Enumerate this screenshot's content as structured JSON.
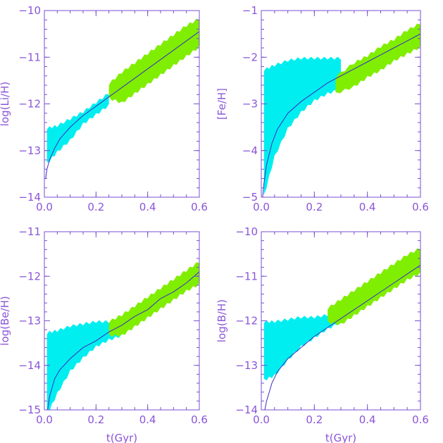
{
  "chart_data": [
    {
      "type": "area",
      "xlabel": "",
      "ylabel": "log(Li/H)",
      "xlim": [
        0.0,
        0.6
      ],
      "ylim": [
        -14,
        -10
      ],
      "xticks": [
        0.0,
        0.2,
        0.4,
        0.6
      ],
      "yticks": [
        -14,
        -13,
        -12,
        -11,
        -10
      ],
      "xtick_labels": [
        "0.0",
        "0.2",
        "0.4",
        "0.6"
      ],
      "ytick_labels": [
        "−14",
        "−13",
        "−12",
        "−11",
        "−10"
      ],
      "line": {
        "x": [
          0.005,
          0.01,
          0.02,
          0.04,
          0.06,
          0.1,
          0.15,
          0.2,
          0.25,
          0.3,
          0.35,
          0.4,
          0.45,
          0.5,
          0.55,
          0.6
        ],
        "y": [
          -13.6,
          -13.4,
          -13.2,
          -12.95,
          -12.75,
          -12.5,
          -12.25,
          -12.05,
          -11.85,
          -11.65,
          -11.45,
          -11.25,
          -11.05,
          -10.85,
          -10.65,
          -10.45
        ]
      },
      "cyan_band": {
        "x": [
          0.01,
          0.05,
          0.1,
          0.15,
          0.2,
          0.25
        ],
        "upper": [
          -12.55,
          -12.5,
          -12.35,
          -12.2,
          -12.0,
          -11.8
        ],
        "lower": [
          -13.25,
          -13.0,
          -12.75,
          -12.4,
          -12.2,
          -12.0
        ]
      },
      "green_band": {
        "x": [
          0.25,
          0.3,
          0.35,
          0.4,
          0.45,
          0.5,
          0.55,
          0.6
        ],
        "upper": [
          -11.6,
          -11.35,
          -11.15,
          -10.95,
          -10.75,
          -10.55,
          -10.35,
          -10.2
        ],
        "lower": [
          -11.85,
          -11.95,
          -11.75,
          -11.55,
          -11.35,
          -11.15,
          -10.95,
          -10.75
        ]
      },
      "colors": {
        "line": "#3a2fc0",
        "cyan": "#00eef0",
        "green": "#80ee00"
      }
    },
    {
      "type": "area",
      "xlabel": "",
      "ylabel": "[Fe/H]",
      "xlim": [
        0.0,
        0.6
      ],
      "ylim": [
        -5,
        -1
      ],
      "xticks": [
        0.0,
        0.2,
        0.4,
        0.6
      ],
      "yticks": [
        -5,
        -4,
        -3,
        -2,
        -1
      ],
      "xtick_labels": [
        "0.0",
        "0.2",
        "0.4",
        "0.6"
      ],
      "ytick_labels": [
        "−5",
        "−4",
        "−3",
        "−2",
        "−1"
      ],
      "line": {
        "x": [
          0.005,
          0.01,
          0.02,
          0.04,
          0.06,
          0.1,
          0.15,
          0.2,
          0.25,
          0.3,
          0.35,
          0.4,
          0.45,
          0.5,
          0.55,
          0.6
        ],
        "y": [
          -5.0,
          -4.7,
          -4.3,
          -3.85,
          -3.55,
          -3.2,
          -2.95,
          -2.75,
          -2.55,
          -2.4,
          -2.25,
          -2.1,
          -1.95,
          -1.8,
          -1.65,
          -1.5
        ]
      },
      "cyan_band": {
        "x": [
          0.01,
          0.05,
          0.1,
          0.15,
          0.2,
          0.25,
          0.3
        ],
        "upper": [
          -2.3,
          -2.2,
          -2.1,
          -2.05,
          -2.05,
          -2.05,
          -2.05
        ],
        "lower": [
          -4.95,
          -4.1,
          -3.5,
          -3.15,
          -2.9,
          -2.75,
          -2.65
        ]
      },
      "green_band": {
        "x": [
          0.28,
          0.35,
          0.4,
          0.45,
          0.5,
          0.55,
          0.6
        ],
        "upper": [
          -2.45,
          -2.15,
          -2.0,
          -1.8,
          -1.65,
          -1.45,
          -1.3
        ],
        "lower": [
          -2.75,
          -2.6,
          -2.4,
          -2.25,
          -2.05,
          -1.9,
          -1.75
        ]
      },
      "colors": {
        "line": "#3a2fc0",
        "cyan": "#00eef0",
        "green": "#80ee00"
      }
    },
    {
      "type": "area",
      "xlabel": "t(Gyr)",
      "ylabel": "log(Be/H)",
      "xlim": [
        0.0,
        0.6
      ],
      "ylim": [
        -15,
        -11
      ],
      "xticks": [
        0.0,
        0.2,
        0.4,
        0.6
      ],
      "yticks": [
        -15,
        -14,
        -13,
        -12,
        -11
      ],
      "xtick_labels": [
        "0.0",
        "0.2",
        "0.4",
        "0.6"
      ],
      "ytick_labels": [
        "−15",
        "−14",
        "−13",
        "−12",
        "−11"
      ],
      "line": {
        "x": [
          0.01,
          0.02,
          0.04,
          0.06,
          0.1,
          0.15,
          0.2,
          0.25,
          0.3,
          0.35,
          0.4,
          0.45,
          0.5,
          0.55,
          0.6
        ],
        "y": [
          -15.1,
          -14.7,
          -14.3,
          -14.1,
          -13.85,
          -13.6,
          -13.45,
          -13.25,
          -13.1,
          -12.9,
          -12.75,
          -12.5,
          -12.35,
          -12.15,
          -11.9
        ]
      },
      "cyan_band": {
        "x": [
          0.01,
          0.05,
          0.1,
          0.15,
          0.2,
          0.25,
          0.3
        ],
        "upper": [
          -13.3,
          -13.25,
          -13.15,
          -13.1,
          -13.05,
          -13.05,
          -13.0
        ],
        "lower": [
          -15.1,
          -14.6,
          -14.1,
          -13.8,
          -13.55,
          -13.4,
          -13.3
        ]
      },
      "green_band": {
        "x": [
          0.25,
          0.3,
          0.35,
          0.4,
          0.45,
          0.5,
          0.55,
          0.6
        ],
        "upper": [
          -13.05,
          -12.9,
          -12.7,
          -12.5,
          -12.3,
          -12.1,
          -11.9,
          -11.7
        ],
        "lower": [
          -13.3,
          -13.3,
          -13.1,
          -12.9,
          -12.7,
          -12.5,
          -12.3,
          -12.15
        ]
      },
      "colors": {
        "line": "#3a2fc0",
        "cyan": "#00eef0",
        "green": "#80ee00"
      }
    },
    {
      "type": "area",
      "xlabel": "t(Gyr)",
      "ylabel": "log(B/H)",
      "xlim": [
        0.0,
        0.6
      ],
      "ylim": [
        -14,
        -10
      ],
      "xticks": [
        0.0,
        0.2,
        0.4,
        0.6
      ],
      "yticks": [
        -14,
        -13,
        -12,
        -11,
        -10
      ],
      "xtick_labels": [
        "0.0",
        "0.2",
        "0.4",
        "0.6"
      ],
      "ytick_labels": [
        "−14",
        "−13",
        "−12",
        "−11",
        "−10"
      ],
      "line": {
        "x": [
          0.01,
          0.02,
          0.04,
          0.06,
          0.1,
          0.15,
          0.2,
          0.25,
          0.3,
          0.35,
          0.4,
          0.45,
          0.5,
          0.55,
          0.6
        ],
        "y": [
          -14.1,
          -13.8,
          -13.4,
          -13.15,
          -12.85,
          -12.6,
          -12.35,
          -12.15,
          -11.95,
          -11.75,
          -11.55,
          -11.35,
          -11.15,
          -10.95,
          -10.75
        ]
      },
      "cyan_band": {
        "x": [
          0.01,
          0.05,
          0.1,
          0.15,
          0.2,
          0.25,
          0.3
        ],
        "upper": [
          -12.05,
          -12.05,
          -12.0,
          -11.95,
          -11.95,
          -11.9,
          -11.9
        ],
        "lower": [
          -13.3,
          -13.2,
          -12.85,
          -12.55,
          -12.35,
          -12.15,
          -12.0
        ]
      },
      "green_band": {
        "x": [
          0.25,
          0.3,
          0.35,
          0.4,
          0.45,
          0.5,
          0.55,
          0.6
        ],
        "upper": [
          -11.75,
          -11.55,
          -11.35,
          -11.15,
          -10.95,
          -10.75,
          -10.55,
          -10.4
        ],
        "lower": [
          -12.0,
          -12.05,
          -11.85,
          -11.65,
          -11.45,
          -11.25,
          -11.05,
          -10.9
        ]
      },
      "colors": {
        "line": "#3a2fc0",
        "cyan": "#00eef0",
        "green": "#80ee00"
      }
    }
  ]
}
